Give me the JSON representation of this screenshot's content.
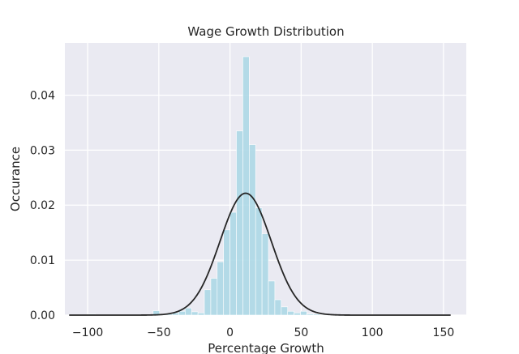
{
  "chart_data": {
    "type": "bar",
    "title": "Wage Growth Distribution",
    "xlabel": "Percentage Growth",
    "ylabel": "Occurance",
    "xlim": [
      -116,
      166
    ],
    "ylim": [
      0,
      0.0495
    ],
    "xticks": [
      -100,
      -50,
      0,
      50,
      100,
      150
    ],
    "xtick_labels": [
      "−100",
      "−50",
      "0",
      "50",
      "100",
      "150"
    ],
    "yticks": [
      0.0,
      0.01,
      0.02,
      0.03,
      0.04
    ],
    "ytick_labels": [
      "0.00",
      "0.01",
      "0.02",
      "0.03",
      "0.04"
    ],
    "grid": true,
    "bin_width": 4.5,
    "histogram": {
      "bin_starts": [
        -112.5,
        -108,
        -103.5,
        -99,
        -94.5,
        -90,
        -85.5,
        -81,
        -76.5,
        -72,
        -67.5,
        -63,
        -58.5,
        -54,
        -49.5,
        -45,
        -40.5,
        -36,
        -31.5,
        -27,
        -22.5,
        -18,
        -13.5,
        -9,
        -4.5,
        0,
        4.5,
        9,
        13.5,
        18,
        22.5,
        27,
        31.5,
        36,
        40.5,
        45,
        49.5,
        54,
        58.5,
        63,
        67.5,
        72,
        76.5,
        81,
        85.5,
        90,
        94.5,
        99,
        103.5,
        108,
        112.5,
        117,
        121.5,
        126,
        130.5,
        135,
        139.5,
        144,
        148.5
      ],
      "heights": [
        0.0001,
        0.0001,
        0.0001,
        0.0002,
        0.0001,
        0.0001,
        0.0001,
        0.0001,
        0.0001,
        0.0001,
        0.0001,
        0.0001,
        0.0001,
        0.0008,
        0.0002,
        0.0002,
        0.0004,
        0.0007,
        0.0013,
        0.0006,
        0.0004,
        0.0046,
        0.0067,
        0.0097,
        0.0155,
        0.0187,
        0.0335,
        0.047,
        0.031,
        0.0195,
        0.0148,
        0.0062,
        0.0028,
        0.0015,
        0.0007,
        0.0004,
        0.0007,
        0.0002,
        0.0002,
        0.0001,
        0.0001,
        0.0001,
        0.0001,
        0.0001,
        0.0001,
        0.0001,
        0.0001,
        0.0001,
        0.0001,
        0.0001,
        0.0001,
        0.0001,
        0.0001,
        0.0001,
        0.0001,
        0.0001,
        0.0001,
        0.0001,
        0.0001
      ]
    },
    "fit_curve": {
      "type": "normal",
      "mean": 11,
      "std": 18,
      "range": [
        -113,
        155
      ]
    },
    "colors": {
      "bars": "#add8e6",
      "curve": "#262626",
      "background": "#eaeaf2",
      "grid": "#ffffff"
    }
  }
}
